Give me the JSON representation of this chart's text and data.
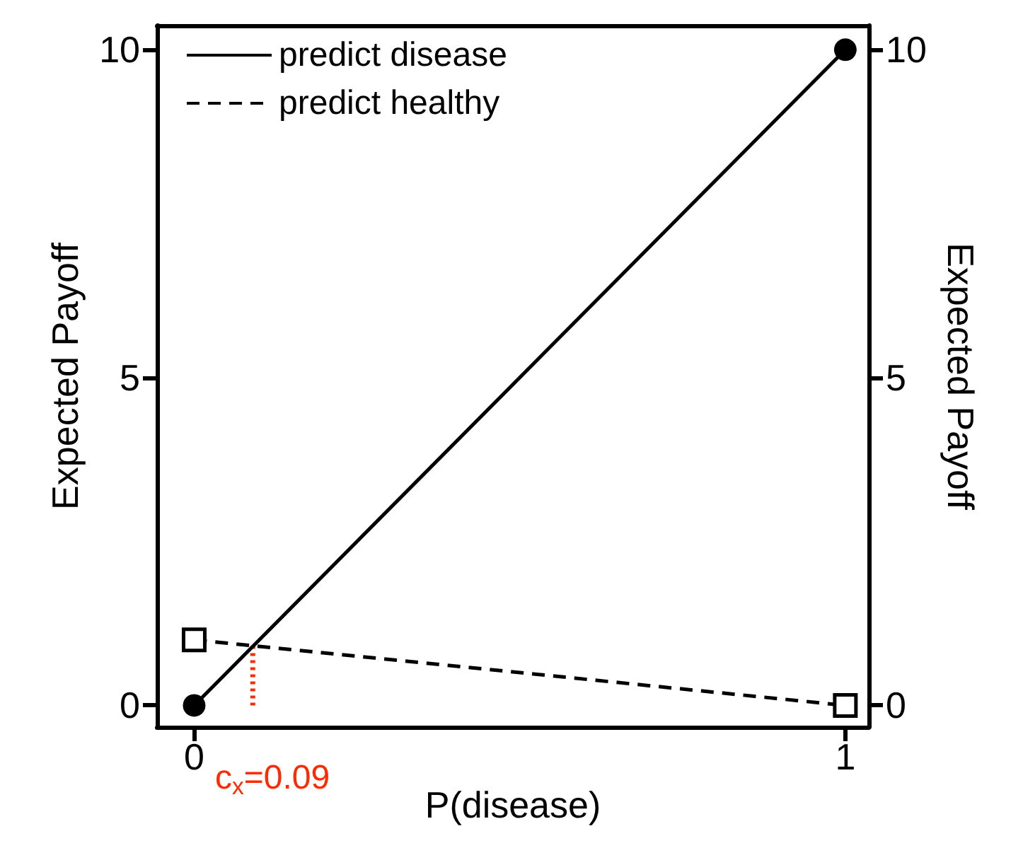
{
  "chart_data": {
    "type": "line",
    "xlabel": "P(disease)",
    "ylabel": "Expected Payoff",
    "y2label": "Expected Payoff",
    "xlim": [
      -0.057,
      1.036
    ],
    "xticks": [
      0,
      1
    ],
    "ylim": [
      -0.33,
      10.37
    ],
    "yticks": [
      0,
      5,
      10
    ],
    "y2lim": [
      -0.33,
      10.37
    ],
    "y2ticks": [
      0,
      5,
      10
    ],
    "series": [
      {
        "name": "predict disease",
        "color": "#000000",
        "x": [
          0,
          1
        ],
        "values": [
          0,
          10
        ],
        "marker": "circle",
        "line_style": "solid"
      },
      {
        "name": "predict healthy",
        "color": "#000000",
        "x": [
          0,
          1
        ],
        "values": [
          1,
          0
        ],
        "marker": "square",
        "line_style": "dashed"
      },
      {
        "color": "#ff2a00",
        "x": [
          0.09,
          0.09
        ],
        "values": [
          0,
          0.91
        ],
        "marker": "none",
        "line_style": "dotted"
      }
    ],
    "annotations": [
      "c$_{x}$=0.09"
    ],
    "grid": false,
    "legend": "top left"
  }
}
